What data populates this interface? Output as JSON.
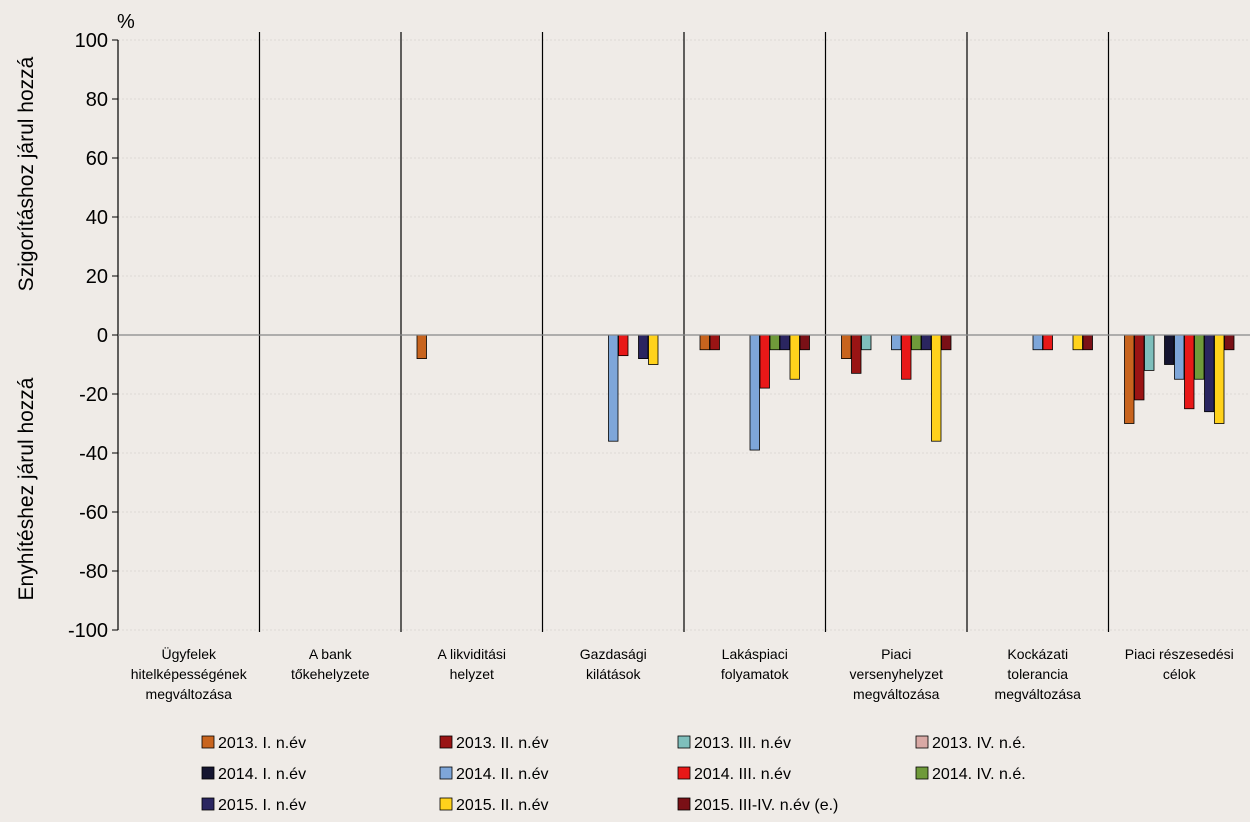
{
  "chart_data": {
    "type": "bar",
    "unit_label": "%",
    "ylabel_top": "Szigorításhoz járul hozzá",
    "ylabel_bottom": "Enyhítéshez járul hozzá",
    "ylim": [
      -100,
      100
    ],
    "yticks": [
      -100,
      -80,
      -60,
      -40,
      -20,
      0,
      20,
      40,
      60,
      80,
      100
    ],
    "grid": true,
    "legend_position": "bottom",
    "categories": [
      [
        "Ügyfelek",
        "hitelképességének",
        "megváltozása"
      ],
      [
        "A bank",
        "tőkehelyzete"
      ],
      [
        "A likviditási",
        "helyzet"
      ],
      [
        "Gazdasági",
        "kilátások"
      ],
      [
        "Lakáspiaci",
        "folyamatok"
      ],
      [
        "Piaci",
        "versenyhelyzet",
        "megváltozása"
      ],
      [
        "Kockázati",
        "tolerancia",
        "megváltozása"
      ],
      [
        "Piaci részesedési",
        "célok"
      ]
    ],
    "series": [
      {
        "name": "2013. I. n.év",
        "color": "#c8641e",
        "values": [
          0,
          0,
          -8,
          0,
          -5,
          -8,
          0,
          -30
        ]
      },
      {
        "name": "2013. II. n.év",
        "color": "#9a1414",
        "values": [
          0,
          0,
          0,
          0,
          -5,
          -13,
          0,
          -22
        ]
      },
      {
        "name": "2013. III. n.év",
        "color": "#7fbfbc",
        "values": [
          0,
          0,
          0,
          0,
          0,
          -5,
          0,
          -12
        ]
      },
      {
        "name": "2013. IV. n.é.",
        "color": "#d9a9a5",
        "values": [
          0,
          0,
          0,
          0,
          0,
          0,
          0,
          0
        ]
      },
      {
        "name": "2014. I. n.év",
        "color": "#151530",
        "values": [
          0,
          0,
          0,
          0,
          0,
          0,
          0,
          -10
        ]
      },
      {
        "name": "2014. II. n.év",
        "color": "#7ea6d9",
        "values": [
          0,
          0,
          0,
          -36,
          -39,
          -5,
          -5,
          -15
        ]
      },
      {
        "name": "2014. III. n.év",
        "color": "#e81818",
        "values": [
          0,
          0,
          0,
          -7,
          -18,
          -15,
          -5,
          -25
        ]
      },
      {
        "name": "2014. IV. n.é.",
        "color": "#6f9a3a",
        "values": [
          0,
          0,
          0,
          0,
          -5,
          -5,
          0,
          -15
        ]
      },
      {
        "name": "2015. I. n.év",
        "color": "#2a2560",
        "values": [
          0,
          0,
          0,
          -8,
          -5,
          -5,
          0,
          -26
        ]
      },
      {
        "name": "2015. II. n.év",
        "color": "#ffd21c",
        "values": [
          0,
          0,
          0,
          -10,
          -15,
          -36,
          -5,
          -30
        ]
      },
      {
        "name": "2015. III-IV. n.év (e.)",
        "color": "#7a1016",
        "values": [
          0,
          0,
          0,
          0,
          -5,
          -5,
          -5,
          -5
        ]
      }
    ]
  }
}
